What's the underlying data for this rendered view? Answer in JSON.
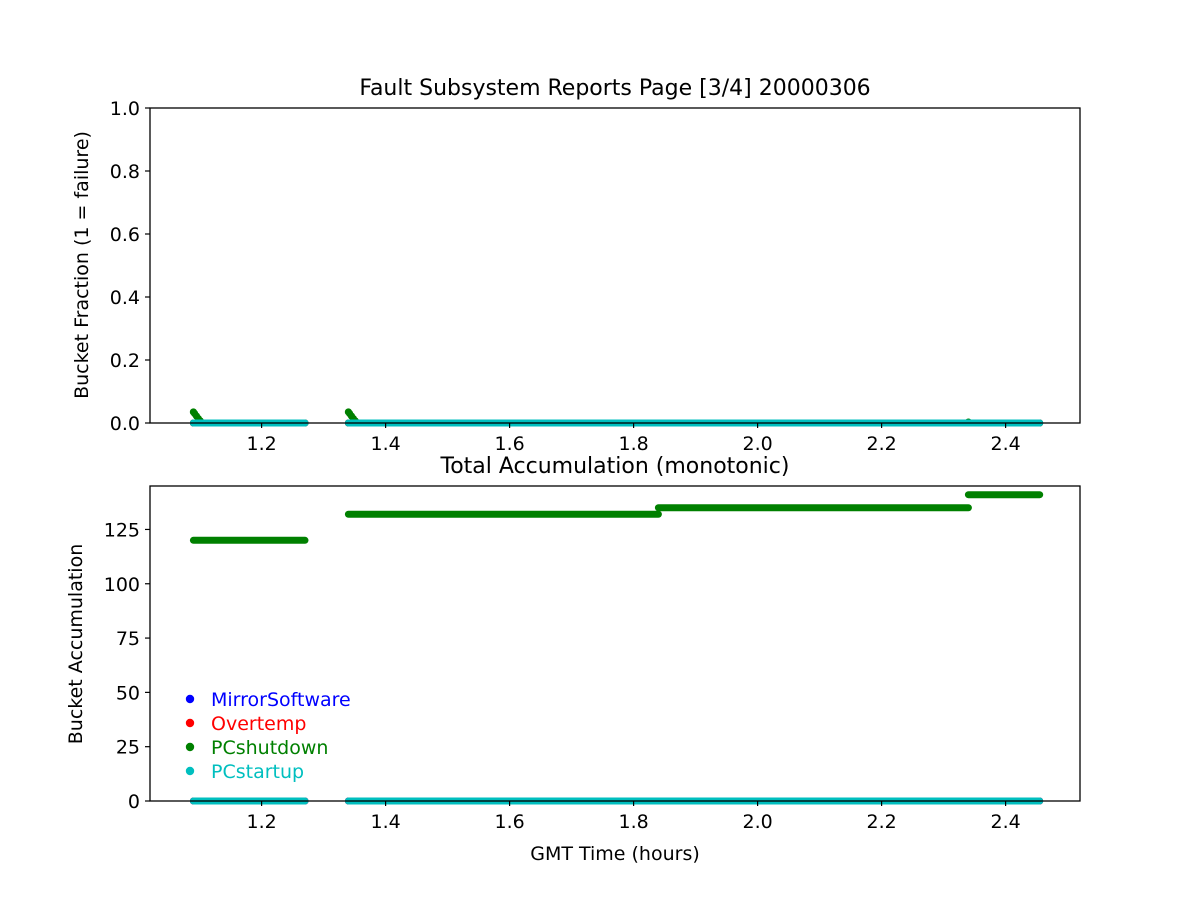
{
  "figure_title": "Fault Subsystem Reports Page [3/4] 20000306",
  "colors": {
    "MirrorSoftware": "#0000ff",
    "Overtemp": "#ff0000",
    "PCshutdown": "#008000",
    "PCstartup": "#00bfbf"
  },
  "chart_data": [
    {
      "type": "scatter",
      "title": "Fault Subsystem Reports Page [3/4] 20000306",
      "xlabel": "",
      "ylabel": "Bucket Fraction (1 = failure)",
      "xlim": [
        1.02,
        2.52
      ],
      "ylim": [
        0.0,
        1.0
      ],
      "xticks": [
        "1.2",
        "1.4",
        "1.6",
        "1.8",
        "2.0",
        "2.2",
        "2.4"
      ],
      "yticks": [
        "0.0",
        "0.2",
        "0.4",
        "0.6",
        "0.8",
        "1.0"
      ],
      "grid": false,
      "series": [
        {
          "name": "MirrorSoftware",
          "color": "#0000ff",
          "segments": [
            {
              "x0": 1.09,
              "x1": 1.27,
              "y": 0.0
            },
            {
              "x0": 1.34,
              "x1": 2.455,
              "y": 0.0
            }
          ],
          "points": []
        },
        {
          "name": "Overtemp",
          "color": "#ff0000",
          "segments": [
            {
              "x0": 1.09,
              "x1": 1.27,
              "y": 0.0
            },
            {
              "x0": 1.34,
              "x1": 2.455,
              "y": 0.0
            }
          ],
          "points": []
        },
        {
          "name": "PCshutdown",
          "color": "#008000",
          "segments": [
            {
              "x0": 1.09,
              "x1": 1.27,
              "y": 0.0
            },
            {
              "x0": 1.34,
              "x1": 2.455,
              "y": 0.0
            }
          ],
          "points": [
            {
              "x": 1.09,
              "y": 0.035
            },
            {
              "x": 1.092,
              "y": 0.03
            },
            {
              "x": 1.095,
              "y": 0.022
            },
            {
              "x": 1.098,
              "y": 0.014
            },
            {
              "x": 1.101,
              "y": 0.007
            },
            {
              "x": 1.34,
              "y": 0.035
            },
            {
              "x": 1.342,
              "y": 0.03
            },
            {
              "x": 1.345,
              "y": 0.022
            },
            {
              "x": 1.348,
              "y": 0.014
            },
            {
              "x": 1.351,
              "y": 0.007
            },
            {
              "x": 2.34,
              "y": 0.003
            }
          ]
        },
        {
          "name": "PCstartup",
          "color": "#00bfbf",
          "segments": [
            {
              "x0": 1.09,
              "x1": 1.27,
              "y": 0.0
            },
            {
              "x0": 1.34,
              "x1": 2.455,
              "y": 0.0
            }
          ],
          "points": []
        }
      ]
    },
    {
      "type": "scatter",
      "title": "Total Accumulation (monotonic)",
      "xlabel": "GMT Time (hours)",
      "ylabel": "Bucket Accumulation",
      "xlim": [
        1.02,
        2.52
      ],
      "ylim": [
        0,
        145
      ],
      "xticks": [
        "1.2",
        "1.4",
        "1.6",
        "1.8",
        "2.0",
        "2.2",
        "2.4"
      ],
      "yticks": [
        "0",
        "25",
        "50",
        "75",
        "100",
        "125"
      ],
      "grid": false,
      "legend": {
        "placement": "lower-left",
        "entries": [
          "MirrorSoftware",
          "Overtemp",
          "PCshutdown",
          "PCstartup"
        ]
      },
      "series": [
        {
          "name": "MirrorSoftware",
          "color": "#0000ff",
          "segments": [
            {
              "x0": 1.09,
              "x1": 1.27,
              "y": 0
            },
            {
              "x0": 1.34,
              "x1": 2.455,
              "y": 0
            }
          ]
        },
        {
          "name": "Overtemp",
          "color": "#ff0000",
          "segments": [
            {
              "x0": 1.09,
              "x1": 1.27,
              "y": 0
            },
            {
              "x0": 1.34,
              "x1": 2.455,
              "y": 0
            }
          ]
        },
        {
          "name": "PCshutdown",
          "color": "#008000",
          "segments": [
            {
              "x0": 1.09,
              "x1": 1.27,
              "y": 120
            },
            {
              "x0": 1.34,
              "x1": 1.84,
              "y": 132
            },
            {
              "x0": 1.84,
              "x1": 2.34,
              "y": 135
            },
            {
              "x0": 2.34,
              "x1": 2.455,
              "y": 141
            }
          ]
        },
        {
          "name": "PCstartup",
          "color": "#00bfbf",
          "segments": [
            {
              "x0": 1.09,
              "x1": 1.27,
              "y": 0
            },
            {
              "x0": 1.34,
              "x1": 2.455,
              "y": 0
            }
          ]
        }
      ]
    }
  ]
}
